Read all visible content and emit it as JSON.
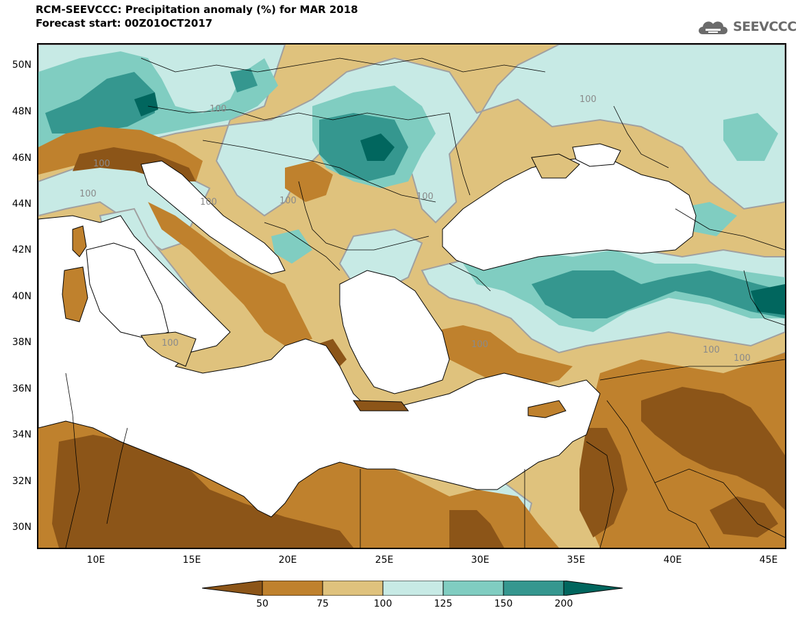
{
  "header": {
    "title_line1": "RCM-SEEVCCC: Precipitation anomaly (%) for MAR 2018",
    "title_line2": "Forecast start: 00Z01OCT2017",
    "logo_text": "SEEVCCC",
    "logo_icon": "cloud-icon"
  },
  "map": {
    "lat_labels": [
      "50N",
      "48N",
      "46N",
      "44N",
      "42N",
      "40N",
      "38N",
      "36N",
      "34N",
      "32N",
      "30N"
    ],
    "lon_labels": [
      "10E",
      "15E",
      "20E",
      "25E",
      "30E",
      "35E",
      "40E",
      "45E"
    ],
    "contour_labels": [
      "100",
      "100",
      "100",
      "100",
      "100",
      "100",
      "100",
      "100",
      "100",
      "100",
      "100"
    ],
    "colors": {
      "sea": "#ffffff",
      "c_lt50": "#8c5518",
      "c_50_75": "#bf812d",
      "c_75_100": "#dfc27d",
      "c_100_125": "#c7eae5",
      "c_125_150": "#80cdc1",
      "c_150_200": "#35978f",
      "c_gt200": "#01665e",
      "contour_line": "#a0a0a0",
      "border_line": "#000000"
    }
  },
  "colorbar": {
    "labels": [
      "50",
      "75",
      "100",
      "125",
      "150",
      "200"
    ],
    "colors": [
      "#8c5518",
      "#bf812d",
      "#dfc27d",
      "#c7eae5",
      "#80cdc1",
      "#35978f",
      "#01665e"
    ]
  }
}
